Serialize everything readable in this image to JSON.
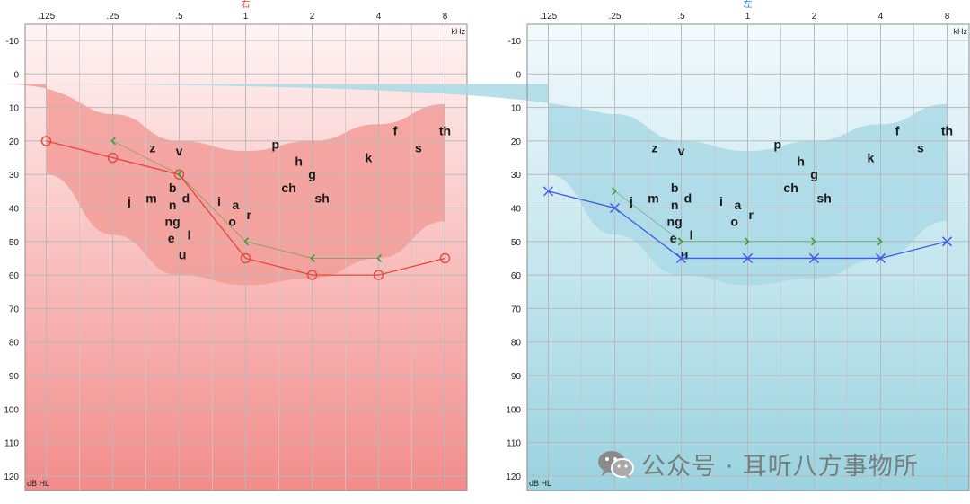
{
  "chart_data": [
    {
      "type": "line",
      "title": "右",
      "ear": "right",
      "title_color": "#e8453c",
      "x_ticks": [
        ".125",
        ".25",
        ".5",
        "1",
        "2",
        "4",
        "8"
      ],
      "x_unit": "kHz",
      "y_ticks": [
        -10,
        0,
        10,
        20,
        30,
        40,
        50,
        60,
        70,
        80,
        90,
        100,
        110,
        120
      ],
      "y_unit": "dB HL",
      "ylim": [
        -10,
        120
      ],
      "background_top": "#fff4f4",
      "background_bottom": "#f28c8a",
      "speech_banana_color": "#f29c98",
      "speech_banana": {
        "upper": [
          [
            0,
            3
          ],
          [
            1,
            12
          ],
          [
            2,
            20
          ],
          [
            3,
            23
          ],
          [
            4,
            20
          ],
          [
            5,
            15
          ],
          [
            6,
            9
          ]
        ],
        "lower": [
          [
            0,
            30
          ],
          [
            1,
            48
          ],
          [
            2,
            60
          ],
          [
            3,
            63
          ],
          [
            4,
            61
          ],
          [
            5,
            55
          ],
          [
            6,
            44
          ]
        ]
      },
      "phonemes": [
        {
          "t": "z",
          "x": 1.6,
          "y": 22
        },
        {
          "t": "v",
          "x": 2.0,
          "y": 23
        },
        {
          "t": "j",
          "x": 1.25,
          "y": 38
        },
        {
          "t": "m",
          "x": 1.58,
          "y": 37
        },
        {
          "t": "b",
          "x": 1.9,
          "y": 34
        },
        {
          "t": "n",
          "x": 1.9,
          "y": 39
        },
        {
          "t": "d",
          "x": 2.1,
          "y": 37
        },
        {
          "t": "ng",
          "x": 1.9,
          "y": 44
        },
        {
          "t": "l",
          "x": 2.15,
          "y": 48
        },
        {
          "t": "e",
          "x": 1.88,
          "y": 49
        },
        {
          "t": "u",
          "x": 2.05,
          "y": 54
        },
        {
          "t": "i",
          "x": 2.6,
          "y": 38
        },
        {
          "t": "a",
          "x": 2.85,
          "y": 39
        },
        {
          "t": "o",
          "x": 2.8,
          "y": 44
        },
        {
          "t": "r",
          "x": 3.05,
          "y": 42
        },
        {
          "t": "p",
          "x": 3.45,
          "y": 21
        },
        {
          "t": "h",
          "x": 3.8,
          "y": 26
        },
        {
          "t": "g",
          "x": 4.0,
          "y": 30
        },
        {
          "t": "ch",
          "x": 3.65,
          "y": 34
        },
        {
          "t": "sh",
          "x": 4.15,
          "y": 37
        },
        {
          "t": "k",
          "x": 4.85,
          "y": 25
        },
        {
          "t": "f",
          "x": 5.25,
          "y": 17
        },
        {
          "t": "s",
          "x": 5.6,
          "y": 22
        },
        {
          "t": "th",
          "x": 6.0,
          "y": 17
        }
      ],
      "series": [
        {
          "name": "air conduction",
          "symbol": "circle",
          "color": "#e8453c",
          "points": [
            [
              0,
              20
            ],
            [
              1,
              25
            ],
            [
              2,
              30
            ],
            [
              3,
              55
            ],
            [
              4,
              60
            ],
            [
              5,
              60
            ],
            [
              6,
              55
            ]
          ]
        },
        {
          "name": "bone conduction",
          "symbol": "bracket-right",
          "color": "#3f9a35",
          "points": [
            [
              1,
              20
            ],
            [
              2,
              30
            ],
            [
              3,
              50
            ],
            [
              4,
              55
            ],
            [
              5,
              55
            ]
          ]
        }
      ]
    },
    {
      "type": "line",
      "title": "左",
      "ear": "left",
      "title_color": "#2f7fd0",
      "x_ticks": [
        ".125",
        ".25",
        ".5",
        "1",
        "2",
        "4",
        "8"
      ],
      "x_unit": "kHz",
      "y_ticks": [
        -10,
        0,
        10,
        20,
        30,
        40,
        50,
        60,
        70,
        80,
        90,
        100,
        110,
        120
      ],
      "y_unit": "dB HL",
      "ylim": [
        -10,
        120
      ],
      "background_top": "#f2fafd",
      "background_bottom": "#9ad3e0",
      "speech_banana_color": "#a9d9e6",
      "speech_banana": {
        "upper": [
          [
            0,
            3
          ],
          [
            1,
            12
          ],
          [
            2,
            20
          ],
          [
            3,
            23
          ],
          [
            4,
            20
          ],
          [
            5,
            15
          ],
          [
            6,
            9
          ]
        ],
        "lower": [
          [
            0,
            30
          ],
          [
            1,
            48
          ],
          [
            2,
            60
          ],
          [
            3,
            63
          ],
          [
            4,
            61
          ],
          [
            5,
            55
          ],
          [
            6,
            44
          ]
        ]
      },
      "phonemes": [
        {
          "t": "z",
          "x": 1.6,
          "y": 22
        },
        {
          "t": "v",
          "x": 2.0,
          "y": 23
        },
        {
          "t": "j",
          "x": 1.25,
          "y": 38
        },
        {
          "t": "m",
          "x": 1.58,
          "y": 37
        },
        {
          "t": "b",
          "x": 1.9,
          "y": 34
        },
        {
          "t": "n",
          "x": 1.9,
          "y": 39
        },
        {
          "t": "d",
          "x": 2.1,
          "y": 37
        },
        {
          "t": "ng",
          "x": 1.9,
          "y": 44
        },
        {
          "t": "l",
          "x": 2.15,
          "y": 48
        },
        {
          "t": "e",
          "x": 1.88,
          "y": 49
        },
        {
          "t": "u",
          "x": 2.05,
          "y": 54
        },
        {
          "t": "i",
          "x": 2.6,
          "y": 38
        },
        {
          "t": "a",
          "x": 2.85,
          "y": 39
        },
        {
          "t": "o",
          "x": 2.8,
          "y": 44
        },
        {
          "t": "r",
          "x": 3.05,
          "y": 42
        },
        {
          "t": "p",
          "x": 3.45,
          "y": 21
        },
        {
          "t": "h",
          "x": 3.8,
          "y": 26
        },
        {
          "t": "g",
          "x": 4.0,
          "y": 30
        },
        {
          "t": "ch",
          "x": 3.65,
          "y": 34
        },
        {
          "t": "sh",
          "x": 4.15,
          "y": 37
        },
        {
          "t": "k",
          "x": 4.85,
          "y": 25
        },
        {
          "t": "f",
          "x": 5.25,
          "y": 17
        },
        {
          "t": "s",
          "x": 5.6,
          "y": 22
        },
        {
          "t": "th",
          "x": 6.0,
          "y": 17
        }
      ],
      "series": [
        {
          "name": "air conduction",
          "symbol": "cross",
          "color": "#3b5ee8",
          "points": [
            [
              0,
              35
            ],
            [
              1,
              40
            ],
            [
              2,
              55
            ],
            [
              3,
              55
            ],
            [
              4,
              55
            ],
            [
              5,
              55
            ],
            [
              6,
              50
            ]
          ]
        },
        {
          "name": "bone conduction",
          "symbol": "bracket-left",
          "color": "#3f9a35",
          "points": [
            [
              1,
              35
            ],
            [
              2,
              50
            ],
            [
              3,
              50
            ],
            [
              4,
              50
            ],
            [
              5,
              50
            ]
          ]
        }
      ]
    }
  ],
  "watermark": {
    "text": "公众号 · 耳听八方事物所",
    "icon": "wechat-icon"
  }
}
